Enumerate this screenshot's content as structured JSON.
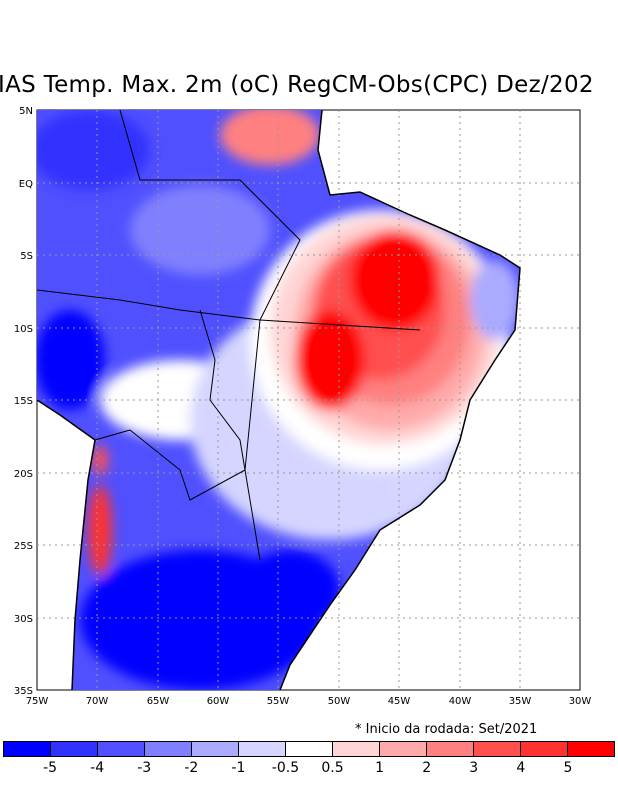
{
  "title": "IAS Temp. Max. 2m (oC) RegCM-Obs(CPC) Dez/202",
  "note": "* Inicio da rodada: Set/2021",
  "axes": {
    "lat_labels": [
      "5N",
      "EQ",
      "5S",
      "10S",
      "15S",
      "20S",
      "25S",
      "30S",
      "35S"
    ],
    "lon_labels": [
      "75W",
      "70W",
      "65W",
      "60W",
      "55W",
      "50W",
      "45W",
      "40W",
      "35W",
      "30W"
    ]
  },
  "legend": {
    "colors": [
      "#0000ff",
      "#3232ff",
      "#5050ff",
      "#8080ff",
      "#aaaaff",
      "#d5d5ff",
      "#ffffff",
      "#ffd5d5",
      "#ffaaaa",
      "#ff8080",
      "#ff5050",
      "#ff3232",
      "#ff0000"
    ],
    "ticks": [
      "-5",
      "-4",
      "-3",
      "-2",
      "-1",
      "-0.5",
      "0.5",
      "1",
      "2",
      "3",
      "4",
      "5"
    ]
  }
}
